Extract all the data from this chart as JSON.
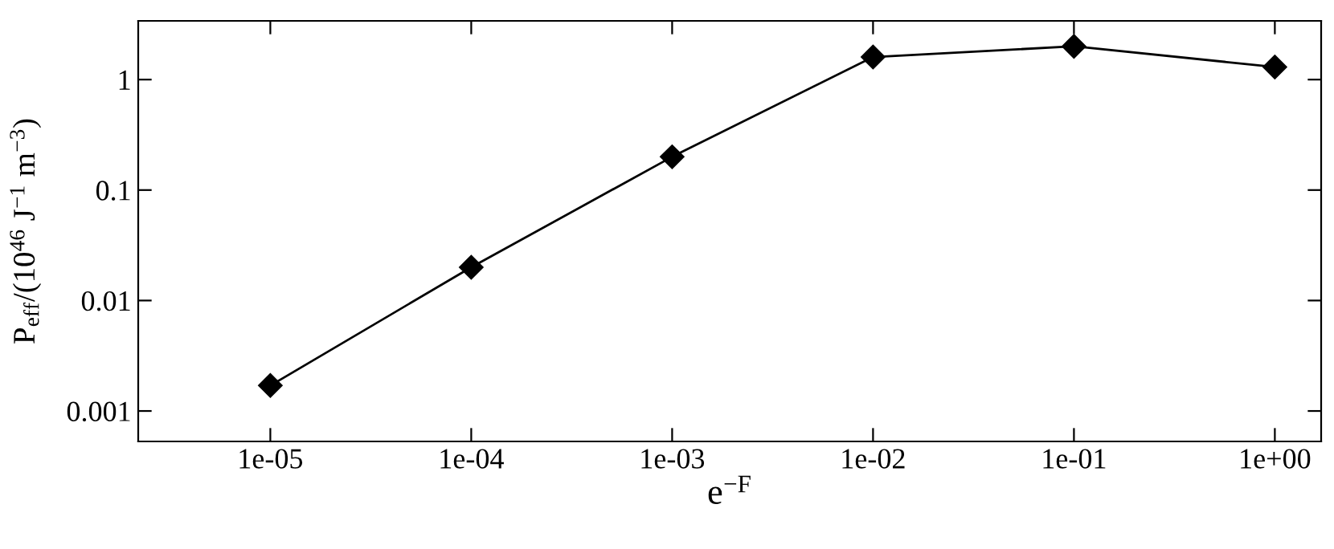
{
  "chart_data": {
    "type": "line",
    "xlabel": "e$^{−F}$",
    "ylabel": "P$_{eff}$/(10$^{46}$ J$^{−1}$ m$^{−3}$)",
    "x": [
      1e-05,
      0.0001,
      0.001,
      0.01,
      0.1,
      1
    ],
    "series": [
      {
        "color": "#000000",
        "values": [
          0.0017,
          0.02,
          0.2,
          1.6,
          2.0,
          1.3
        ]
      }
    ],
    "log": "xy",
    "xlim": [
      2.2e-06,
      1.7
    ],
    "ylim": [
      0.00053,
      3.4
    ],
    "xticks": [
      {
        "value": 1e-05,
        "label": "1e-05"
      },
      {
        "value": 0.0001,
        "label": "1e-04"
      },
      {
        "value": 0.001,
        "label": "1e-03"
      },
      {
        "value": 0.01,
        "label": "1e-02"
      },
      {
        "value": 0.1,
        "label": "1e-01"
      },
      {
        "value": 1,
        "label": "1e+00"
      }
    ],
    "yticks": [
      0.001,
      0.01,
      0.1,
      1
    ],
    "marker": "diamond",
    "line_style": "solid",
    "grid": false,
    "legend": false
  }
}
